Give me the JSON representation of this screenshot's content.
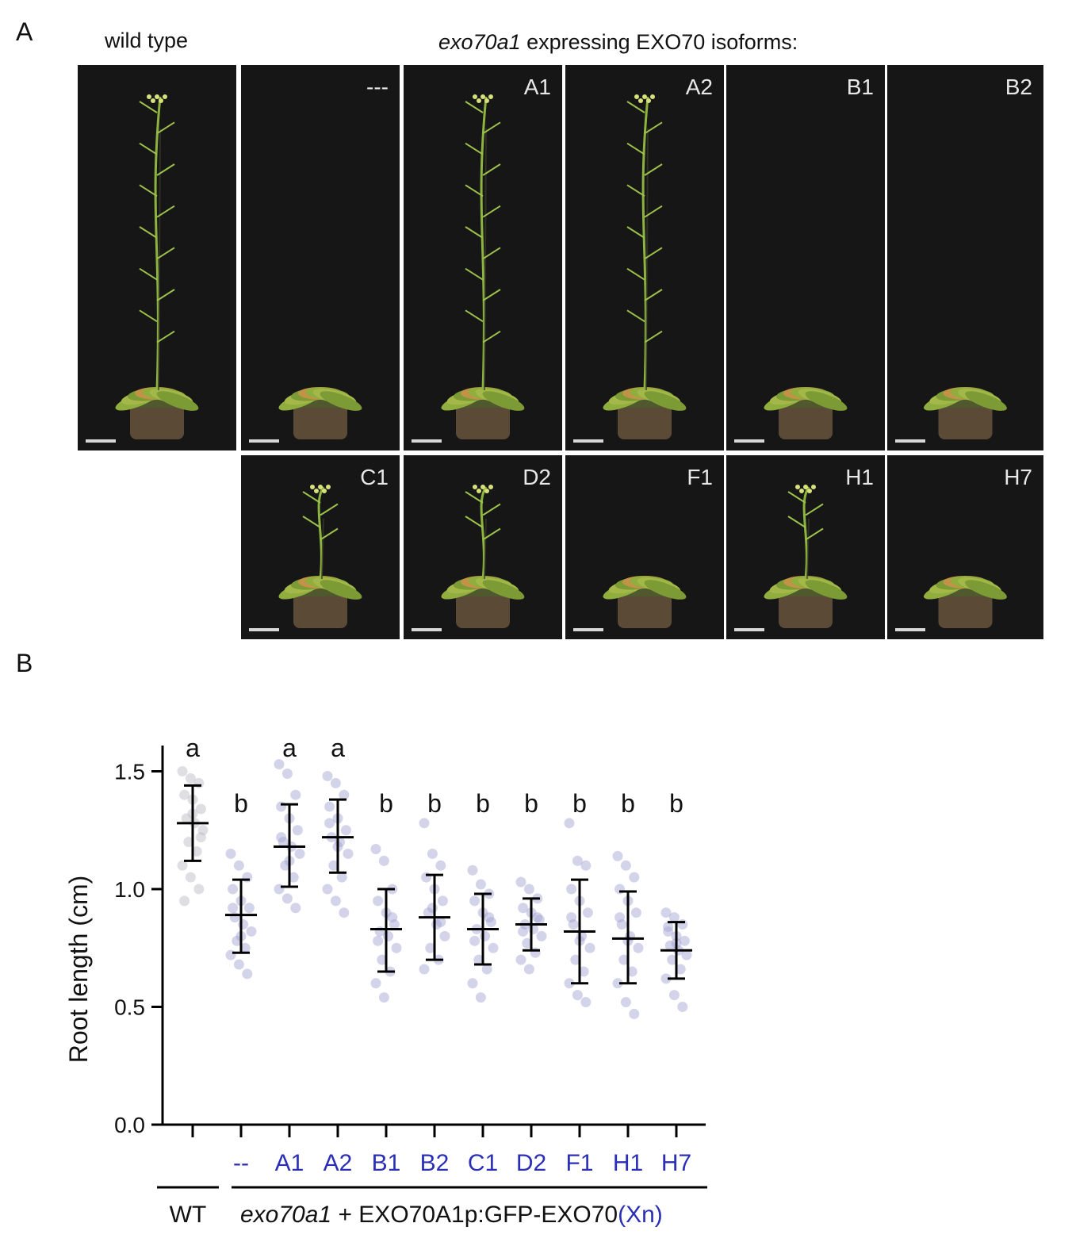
{
  "panel_a": {
    "letter": "A",
    "wildtype_label": "wild type",
    "header_italic": "exo70a1",
    "header_rest": " expressing EXO70 isoforms:",
    "photos": [
      {
        "label": "",
        "plant": "tall"
      },
      {
        "label": "---",
        "plant": "rosette"
      },
      {
        "label": "A1",
        "plant": "tall"
      },
      {
        "label": "A2",
        "plant": "tall"
      },
      {
        "label": "B1",
        "plant": "rosette"
      },
      {
        "label": "B2",
        "plant": "rosette"
      },
      {
        "label": "C1",
        "plant": "short"
      },
      {
        "label": "D2",
        "plant": "short"
      },
      {
        "label": "F1",
        "plant": "rosette"
      },
      {
        "label": "H1",
        "plant": "short"
      },
      {
        "label": "H7",
        "plant": "rosette"
      }
    ]
  },
  "panel_b": {
    "letter": "B",
    "group_wt": "WT",
    "group_mut_italic": "exo70a1",
    "group_mut_rest": " + EXO70A1p:GFP-EXO70",
    "group_mut_suffix": "(Xn)"
  },
  "chart_data": {
    "type": "scatter",
    "ylabel": "Root length (cm)",
    "ylim": [
      0.0,
      1.5
    ],
    "yticks": [
      "0.0",
      "0.5",
      "1.0",
      "1.5"
    ],
    "categories": [
      "",
      "--",
      "A1",
      "A2",
      "B1",
      "B2",
      "C1",
      "D2",
      "F1",
      "H1",
      "H7"
    ],
    "mean": [
      1.28,
      0.89,
      1.18,
      1.22,
      0.83,
      0.88,
      0.83,
      0.85,
      0.82,
      0.79,
      0.74
    ],
    "sd_upper": [
      1.44,
      1.04,
      1.36,
      1.38,
      1.0,
      1.06,
      0.98,
      0.96,
      1.04,
      0.99,
      0.86
    ],
    "sd_lower": [
      1.12,
      0.73,
      1.01,
      1.07,
      0.65,
      0.7,
      0.68,
      0.74,
      0.6,
      0.6,
      0.62
    ],
    "significance": [
      "a",
      "b",
      "a",
      "a",
      "b",
      "b",
      "b",
      "b",
      "b",
      "b",
      "b"
    ],
    "points": [
      [
        1.5,
        1.47,
        1.45,
        1.4,
        1.38,
        1.34,
        1.3,
        1.28,
        1.25,
        1.2,
        1.16,
        1.1,
        1.05,
        1.0,
        0.95,
        1.32,
        1.22
      ],
      [
        1.15,
        1.1,
        1.05,
        1.0,
        0.95,
        0.92,
        0.88,
        0.85,
        0.82,
        0.78,
        0.75,
        0.72,
        0.68,
        0.64,
        0.92,
        0.8
      ],
      [
        1.53,
        1.49,
        1.4,
        1.35,
        1.3,
        1.25,
        1.2,
        1.18,
        1.15,
        1.1,
        1.05,
        1.0,
        0.96,
        0.92,
        1.22,
        1.12
      ],
      [
        1.48,
        1.45,
        1.4,
        1.35,
        1.3,
        1.25,
        1.22,
        1.2,
        1.15,
        1.1,
        1.05,
        1.0,
        0.95,
        0.9,
        1.28,
        1.18
      ],
      [
        1.17,
        1.12,
        1.0,
        0.95,
        0.9,
        0.85,
        0.82,
        0.8,
        0.75,
        0.7,
        0.65,
        0.6,
        0.54,
        0.88,
        0.78
      ],
      [
        1.28,
        1.15,
        1.1,
        1.05,
        1.0,
        0.95,
        0.9,
        0.85,
        0.8,
        0.75,
        0.7,
        0.66,
        0.92,
        0.86
      ],
      [
        1.08,
        1.02,
        0.98,
        0.95,
        0.9,
        0.86,
        0.83,
        0.8,
        0.75,
        0.7,
        0.66,
        0.6,
        0.54,
        0.88,
        0.78
      ],
      [
        1.03,
        1.0,
        0.96,
        0.92,
        0.9,
        0.87,
        0.85,
        0.83,
        0.8,
        0.77,
        0.73,
        0.7,
        0.66,
        0.88,
        0.82
      ],
      [
        1.28,
        1.12,
        1.1,
        1.0,
        0.95,
        0.9,
        0.85,
        0.8,
        0.75,
        0.7,
        0.65,
        0.6,
        0.55,
        0.52,
        0.88,
        0.78
      ],
      [
        1.14,
        1.1,
        1.05,
        1.0,
        0.95,
        0.9,
        0.85,
        0.8,
        0.75,
        0.7,
        0.65,
        0.6,
        0.52,
        0.47,
        0.88,
        0.78
      ],
      [
        0.9,
        0.88,
        0.85,
        0.82,
        0.8,
        0.78,
        0.76,
        0.74,
        0.72,
        0.7,
        0.66,
        0.62,
        0.55,
        0.5,
        0.84,
        0.77
      ]
    ],
    "colors": {
      "wt_points": "#b8b8c2",
      "mutant_points": "#9ea0d0",
      "category_label": "#2a2fb6",
      "axis": "#000000"
    }
  }
}
